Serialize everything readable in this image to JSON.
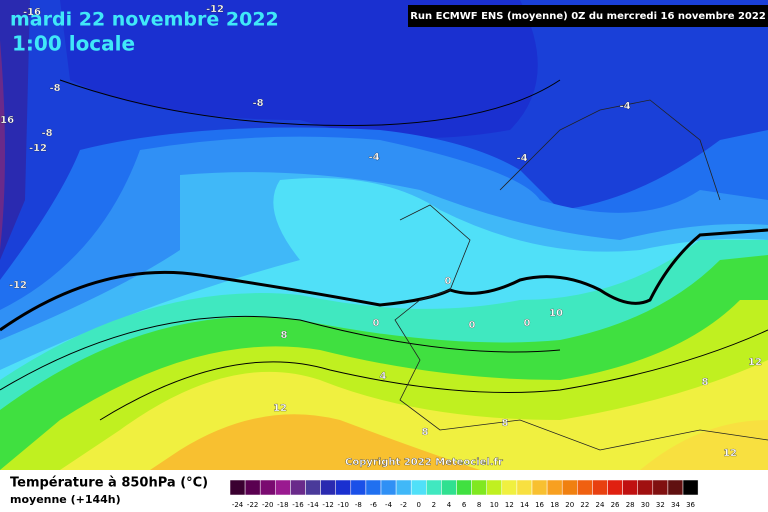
{
  "header": {
    "title": "mardi 22 novembre 2022",
    "subtitle": "1:00 locale",
    "run": "Run ECMWF ENS (moyenne) 0Z du mercredi 16 novembre 2022"
  },
  "map": {
    "copyright": "Copyright 2022 Meteociel.fr",
    "contour_labels": [
      "-16",
      "-12",
      "-16",
      "-8",
      "-8",
      "-8",
      "-12",
      "-4",
      "-4",
      "-4",
      "-12",
      "0",
      "0",
      "0",
      "0",
      "10",
      "8",
      "4",
      "12",
      "8",
      "12",
      "8",
      "8",
      "12"
    ]
  },
  "footer": {
    "parameter": "Température à 850hPa (°C)",
    "detail": "moyenne  (+144h)"
  },
  "legend": [
    {
      "value": -24,
      "color": "#3a0030"
    },
    {
      "value": -22,
      "color": "#5a0050"
    },
    {
      "value": -20,
      "color": "#7a0a70"
    },
    {
      "value": -18,
      "color": "#9a1a90"
    },
    {
      "value": -16,
      "color": "#6a2a8a"
    },
    {
      "value": -14,
      "color": "#4a3a9a"
    },
    {
      "value": -12,
      "color": "#2a2ab0"
    },
    {
      "value": -10,
      "color": "#1a30d0"
    },
    {
      "value": -8,
      "color": "#1a50e8"
    },
    {
      "value": -6,
      "color": "#2070f0"
    },
    {
      "value": -4,
      "color": "#3090f5"
    },
    {
      "value": -2,
      "color": "#40b8f8"
    },
    {
      "value": 0,
      "color": "#50e0f8"
    },
    {
      "value": 2,
      "color": "#40e8c0"
    },
    {
      "value": 4,
      "color": "#30e090"
    },
    {
      "value": 6,
      "color": "#40e040"
    },
    {
      "value": 8,
      "color": "#80e820"
    },
    {
      "value": 10,
      "color": "#c0f020"
    },
    {
      "value": 12,
      "color": "#f0f040"
    },
    {
      "value": 14,
      "color": "#f8e040"
    },
    {
      "value": 16,
      "color": "#f8c030"
    },
    {
      "value": 18,
      "color": "#f8a020"
    },
    {
      "value": 20,
      "color": "#f08010"
    },
    {
      "value": 22,
      "color": "#f06010"
    },
    {
      "value": 24,
      "color": "#e84010"
    },
    {
      "value": 26,
      "color": "#e02010"
    },
    {
      "value": 28,
      "color": "#c01010"
    },
    {
      "value": 30,
      "color": "#a01010"
    },
    {
      "value": 32,
      "color": "#801010"
    },
    {
      "value": 34,
      "color": "#601010"
    },
    {
      "value": 36,
      "color": "#000000"
    }
  ]
}
